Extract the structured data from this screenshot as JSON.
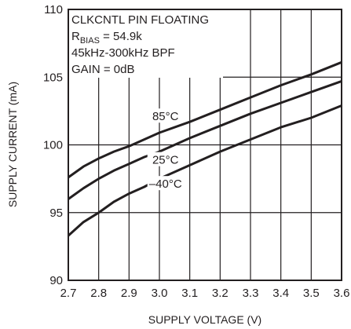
{
  "chart_data": {
    "type": "line",
    "xlabel": "SUPPLY VOLTAGE (V)",
    "ylabel": "SUPPLY CURRENT (mA)",
    "xlim": [
      2.7,
      3.6
    ],
    "ylim": [
      90,
      110
    ],
    "xticks": [
      "2.7",
      "2.8",
      "2.9",
      "3.0",
      "3.1",
      "3.2",
      "3.3",
      "3.4",
      "3.5",
      "3.6"
    ],
    "yticks": [
      "90",
      "95",
      "100",
      "105",
      "110"
    ],
    "grid": true,
    "annotations": {
      "line1": "CLKCNTL PIN FLOATING",
      "line2_main": "R",
      "line2_sub": "BIAS",
      "line2_rest": " = 54.9k",
      "line3": "45kHz-300kHz BPF",
      "line4": "GAIN = 0dB"
    },
    "series": [
      {
        "name": "85°C",
        "x": [
          2.7,
          2.75,
          2.8,
          2.85,
          2.9,
          2.95,
          3.0,
          3.1,
          3.2,
          3.3,
          3.4,
          3.5,
          3.6
        ],
        "values": [
          97.6,
          98.4,
          99.0,
          99.5,
          99.9,
          100.4,
          100.9,
          101.7,
          102.6,
          103.5,
          104.4,
          105.2,
          106.1
        ]
      },
      {
        "name": "25°C",
        "x": [
          2.7,
          2.75,
          2.8,
          2.85,
          2.9,
          2.95,
          3.0,
          3.1,
          3.2,
          3.3,
          3.4,
          3.5,
          3.6
        ],
        "values": [
          96.0,
          96.8,
          97.5,
          98.1,
          98.6,
          99.1,
          99.5,
          100.5,
          101.4,
          102.3,
          103.1,
          103.9,
          104.7
        ]
      },
      {
        "name": "–40°C",
        "x": [
          2.7,
          2.75,
          2.8,
          2.85,
          2.9,
          2.95,
          3.0,
          3.1,
          3.2,
          3.3,
          3.4,
          3.5,
          3.6
        ],
        "values": [
          93.3,
          94.3,
          95.0,
          95.8,
          96.4,
          96.9,
          97.5,
          98.5,
          99.5,
          100.4,
          101.3,
          102.0,
          102.9
        ]
      }
    ],
    "colors": {
      "line": "#231f20",
      "grid": "#231f20",
      "background": "#ffffff"
    }
  }
}
